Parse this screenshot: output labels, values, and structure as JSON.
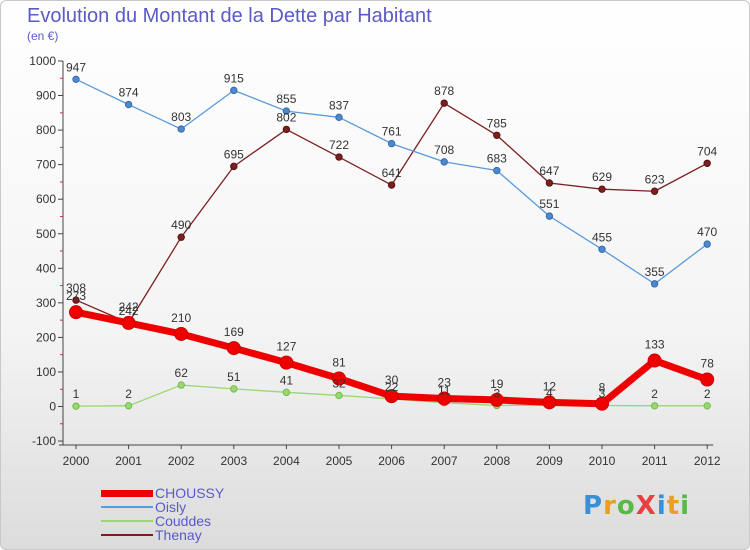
{
  "header": {
    "title": "Evolution du Montant de la Dette par Habitant",
    "subtitle": "(en €)"
  },
  "logo": {
    "text": "Proxiti",
    "letters": [
      {
        "ch": "P",
        "color": "#3a8fd8"
      },
      {
        "ch": "r",
        "color": "#e8a020"
      },
      {
        "ch": "o",
        "color": "#58b848"
      },
      {
        "ch": "X",
        "color": "#e84040"
      },
      {
        "ch": "i",
        "color": "#3a8fd8"
      },
      {
        "ch": "t",
        "color": "#e8a020"
      },
      {
        "ch": "i",
        "color": "#58b848"
      }
    ]
  },
  "chart_data": {
    "type": "line",
    "x": [
      "2000",
      "2001",
      "2002",
      "2003",
      "2004",
      "2005",
      "2006",
      "2007",
      "2008",
      "2009",
      "2010",
      "2011",
      "2012"
    ],
    "ylim": [
      -100,
      1000
    ],
    "yticks": [
      -100,
      0,
      100,
      200,
      300,
      400,
      500,
      600,
      700,
      800,
      900,
      1000
    ],
    "grid": false,
    "legend": "bottom-left",
    "series": [
      {
        "name": "Thenay",
        "color": "#7a2020",
        "values": [
          308,
          242,
          490,
          695,
          802,
          722,
          641,
          878,
          785,
          647,
          629,
          623,
          704
        ],
        "labels": [
          "308",
          "242",
          "490",
          "695",
          "802",
          "722",
          "641",
          "878",
          "785",
          "647",
          "629",
          "623",
          "704"
        ]
      },
      {
        "name": "Oisly",
        "color": "#5a9ad8",
        "values": [
          947,
          874,
          803,
          915,
          855,
          837,
          761,
          708,
          683,
          551,
          455,
          355,
          470
        ],
        "labels": [
          "947",
          "874",
          "803",
          "915",
          "855",
          "837",
          "761",
          "708",
          "683",
          "551",
          "455",
          "355",
          "470"
        ]
      },
      {
        "name": "Couddes",
        "color": "#98d870",
        "values": [
          1,
          2,
          62,
          51,
          41,
          32,
          22,
          11,
          3,
          4,
          3,
          2,
          2
        ],
        "labels": [
          "1",
          "2",
          "62",
          "51",
          "41",
          "32",
          "22",
          "11",
          "3",
          "4",
          "3",
          "2",
          "2"
        ]
      },
      {
        "name": "CHOUSSY",
        "color": "#ee0000",
        "values": [
          273,
          242,
          210,
          169,
          127,
          81,
          30,
          23,
          19,
          12,
          8,
          133,
          78
        ],
        "labels": [
          "273",
          "242",
          "210",
          "169",
          "127",
          "81",
          "30",
          "23",
          "19",
          "12",
          "8",
          "133",
          "78"
        ]
      }
    ]
  },
  "legend": {
    "items": [
      {
        "label": "CHOUSSY",
        "color": "#ee0000",
        "thickness": 7
      },
      {
        "label": "Oisly",
        "color": "#5a9ad8",
        "thickness": 2
      },
      {
        "label": "Couddes",
        "color": "#98d870",
        "thickness": 2
      },
      {
        "label": "Thenay",
        "color": "#7a2020",
        "thickness": 2
      }
    ]
  }
}
